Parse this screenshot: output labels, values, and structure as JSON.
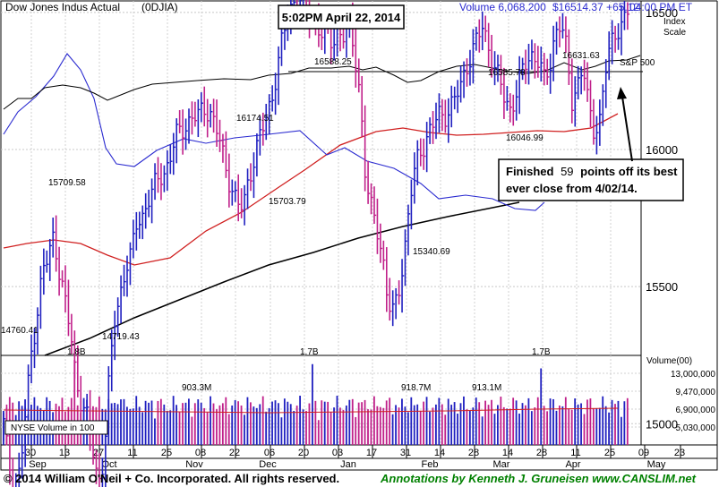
{
  "header": {
    "title": "Dow Jones Indus Actual",
    "symbol": "(0DJIA)",
    "timestamp": "5:02PM April 22, 2014",
    "volume": "Volume 6,068,200",
    "quote": "$16514.37 +65.12",
    "time": "04:00 PM ET",
    "index_scale_1": "Index",
    "index_scale_2": "Scale",
    "sp500_label": "S&P 500"
  },
  "annotation": {
    "line1_a": "Finished",
    "line1_num": "59",
    "line1_b": "points off its best",
    "line2": "ever close from 4/02/14."
  },
  "footer": {
    "copyright": "© 2014 William O'Neil + Co. Incorporated. All rights reserved.",
    "annotations": "Annotations by Kenneth J. Gruneisen www.CANSLIM.net"
  },
  "nyse_volume_label": "NYSE Volume in 100",
  "colors": {
    "up": "#2020c0",
    "down": "#c0208a",
    "blue_line": "#2a2ad0",
    "ma50": "#d02020",
    "ma200": "#000000",
    "sp500": "#000000",
    "footer_text": "#008000",
    "quote_text": "#2a2ad0"
  },
  "chart_data": {
    "type": "candlestick",
    "price_axis": {
      "ticks": [
        15000,
        15500,
        16000,
        16500
      ],
      "range": [
        14690,
        16800
      ]
    },
    "volume_axis": {
      "ticks": [
        "13,000,000",
        "9,470,000",
        "6,900,000",
        "5,030,000"
      ],
      "label": "Volume(00)"
    },
    "month_labels": [
      "Sep",
      "Oct",
      "Nov",
      "Dec",
      "Jan",
      "Feb",
      "Mar",
      "Apr",
      "May"
    ],
    "day_labels": [
      "30",
      "13",
      "27",
      "11",
      "25",
      "08",
      "22",
      "06",
      "20",
      "03",
      "17",
      "31",
      "14",
      "28",
      "14",
      "28",
      "11",
      "25",
      "09",
      "23"
    ],
    "price_annotations": [
      "14760.41",
      "15709.58",
      "14719.43",
      "16174.51",
      "15703.79",
      "16588.25",
      "15340.69",
      "16585.78",
      "16046.99",
      "16631.63"
    ],
    "volume_annotations": [
      "1.8B",
      "903.3M",
      "1.7B",
      "918.7M",
      "913.1M",
      "1.7B"
    ],
    "series_key_points": [
      {
        "label": "14760.41",
        "value": 14760.41
      },
      {
        "label": "15709.58",
        "value": 15709.58
      },
      {
        "label": "14719.43",
        "value": 14719.43
      },
      {
        "label": "16174.51",
        "value": 16174.51
      },
      {
        "label": "15703.79",
        "value": 15703.79
      },
      {
        "label": "16588.25",
        "value": 16588.25
      },
      {
        "label": "15340.69",
        "value": 15340.69
      },
      {
        "label": "16585.78",
        "value": 16585.78
      },
      {
        "label": "16046.99",
        "value": 16046.99
      },
      {
        "label": "16631.63",
        "value": 16631.63
      },
      {
        "label": "close",
        "value": 16514.37
      }
    ]
  }
}
